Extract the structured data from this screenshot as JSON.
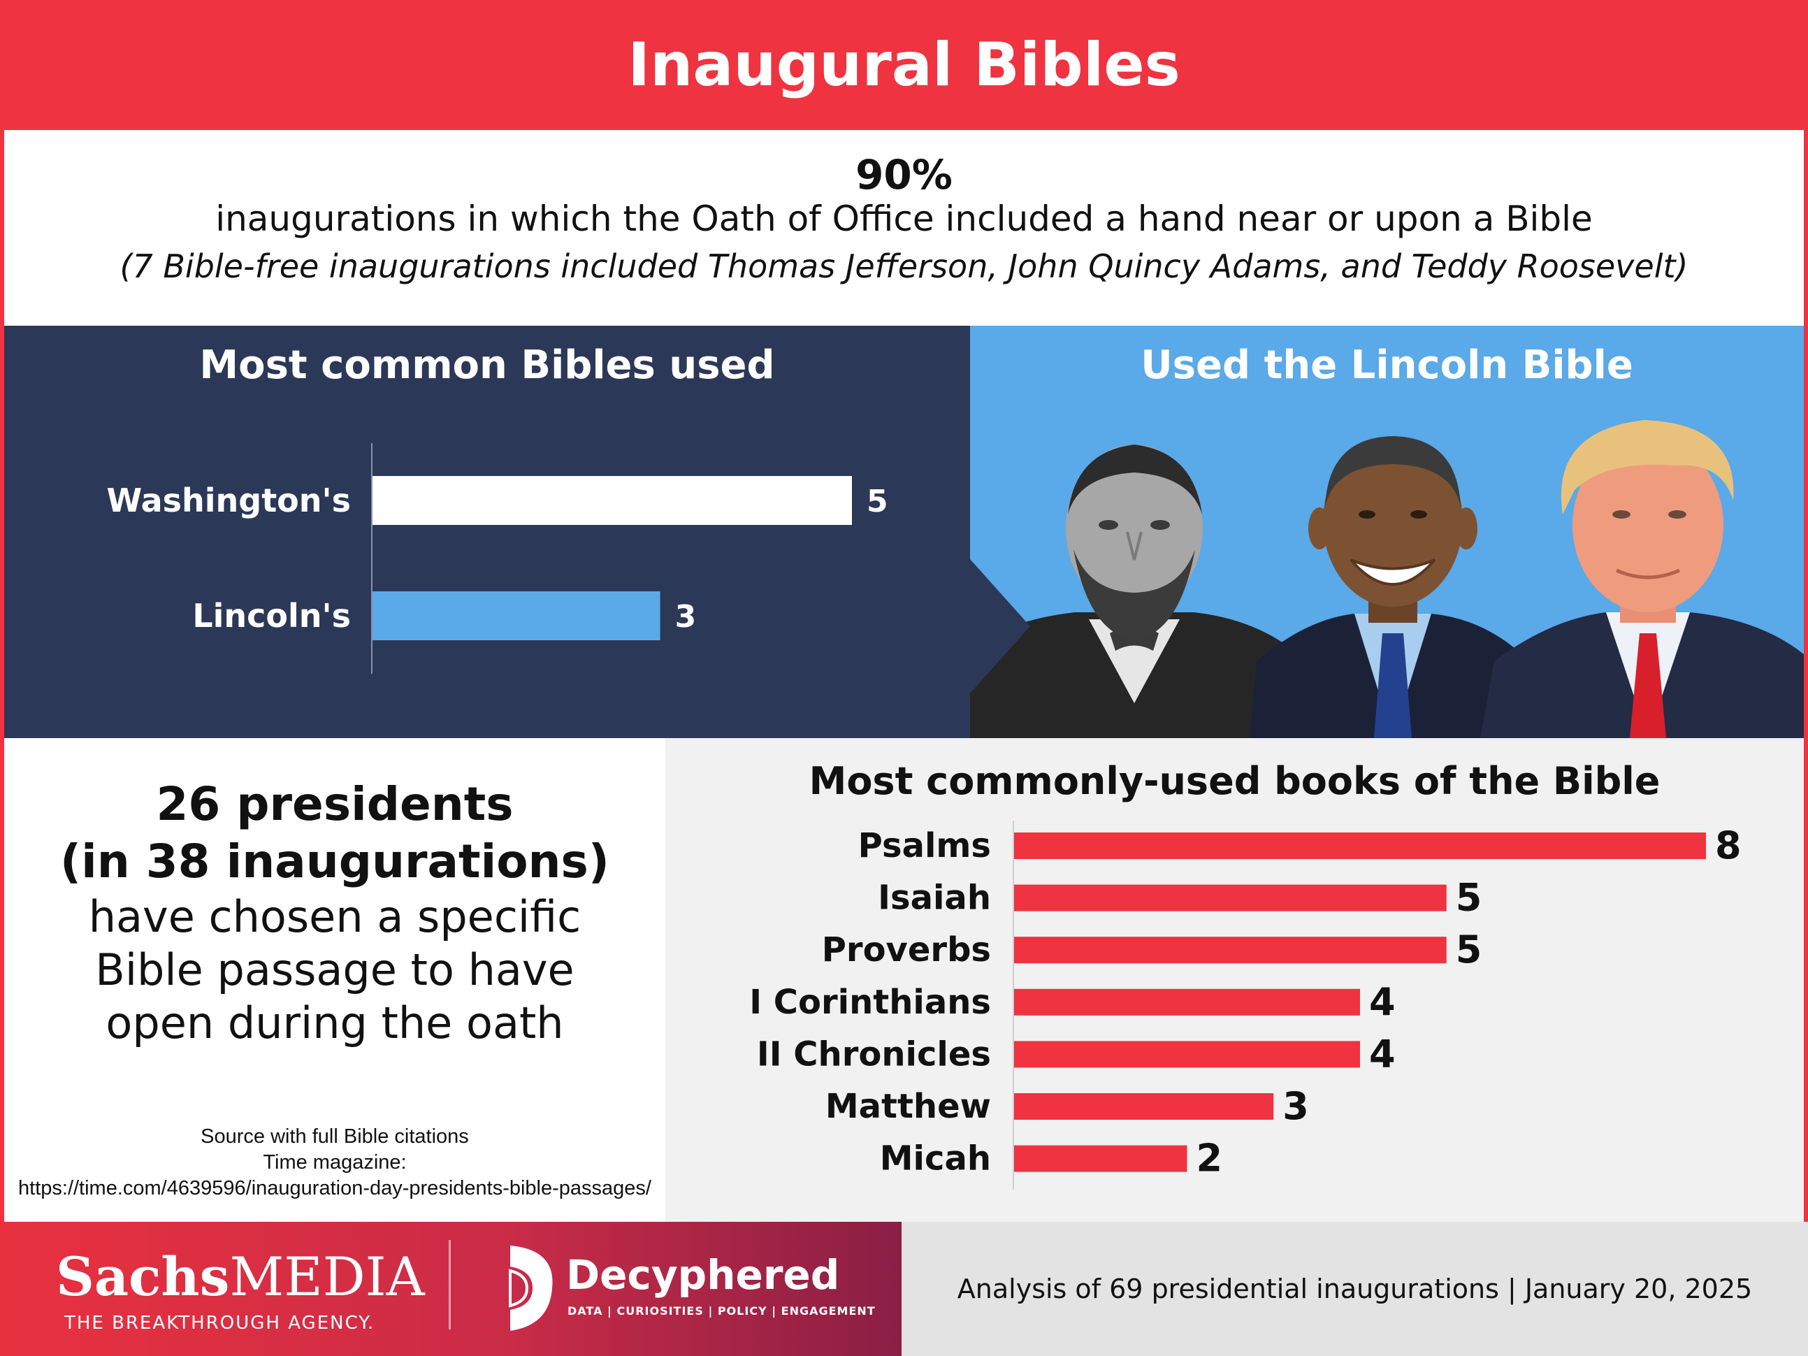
{
  "header": {
    "title": "Inaugural Bibles"
  },
  "stat": {
    "value": "90%",
    "description": "inaugurations in which the Oath of Office included a hand near or upon a Bible",
    "note": "(7 Bible-free inaugurations included Thomas Jefferson, John Quincy Adams, and Teddy Roosevelt)"
  },
  "lincoln_panel": {
    "title": "Used the Lincoln Bible",
    "portraits": [
      "lincoln-portrait",
      "obama-portrait",
      "trump-portrait"
    ]
  },
  "presidents": {
    "bold_line1": "26 presidents",
    "bold_line2": "(in 38 inaugurations)",
    "line3": "have chosen a specific",
    "line4": "Bible passage to have",
    "line5": "open during the oath"
  },
  "source": {
    "line1": "Source with full Bible citations",
    "line2": "Time magazine:",
    "line3": "https://time.com/4639596/inauguration-day-presidents-bible-passages/"
  },
  "footer": {
    "logo1_bold": "Sachs",
    "logo1_rest": "MEDIA",
    "logo1_tagline": "THE BREAKTHROUGH AGENCY.",
    "logo2": "Decyphered",
    "logo2_tagline": "DATA | CURIOSITIES | POLICY | ENGAGEMENT",
    "analysis": "Analysis of 69 presidential inaugurations | January 20, 2025"
  },
  "colors": {
    "red": "#ef3340",
    "navy": "#2b3857",
    "light_blue": "#5aa9e8",
    "gray_panel": "#f1f1f1"
  },
  "chart_data": [
    {
      "type": "bar",
      "orientation": "horizontal",
      "title": "Most common Bibles used",
      "categories": [
        "Washington's",
        "Lincoln's"
      ],
      "values": [
        5,
        3
      ],
      "bar_colors": [
        "#ffffff",
        "#5aa9e8"
      ],
      "xlim": [
        0,
        5
      ]
    },
    {
      "type": "bar",
      "orientation": "horizontal",
      "title": "Most commonly-used books of the Bible",
      "categories": [
        "Psalms",
        "Isaiah",
        "Proverbs",
        "I Corinthians",
        "II Chronicles",
        "Matthew",
        "Micah"
      ],
      "values": [
        8,
        5,
        5,
        4,
        4,
        3,
        2
      ],
      "bar_color": "#ef3340",
      "xlim": [
        0,
        8
      ]
    }
  ]
}
